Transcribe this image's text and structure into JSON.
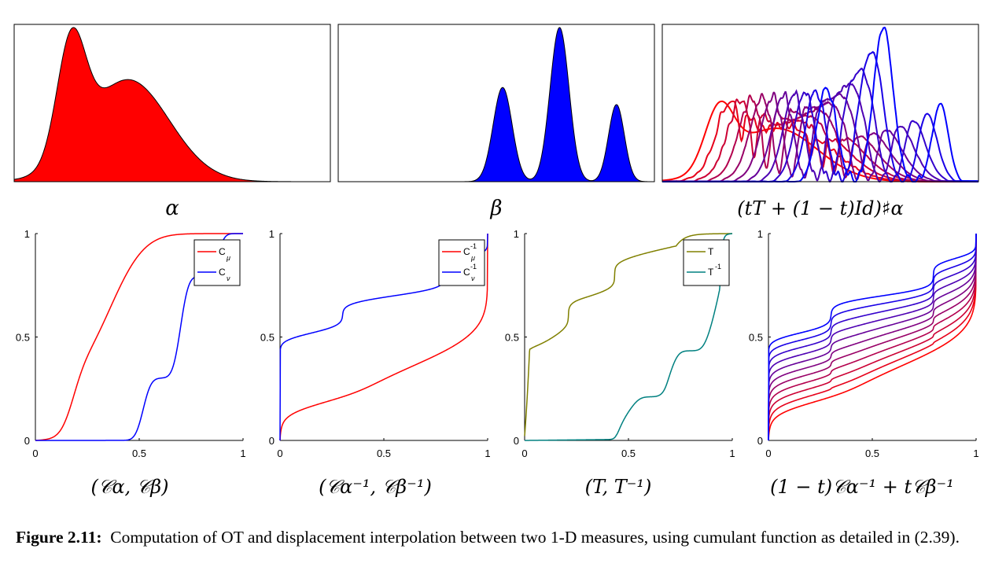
{
  "caption": {
    "label": "Figure 2.11:",
    "text": "Computation of OT and displacement interpolation between two 1-D measures, using cumulant function as detailed in (2.39)."
  },
  "colors": {
    "red": "#ff0000",
    "blue": "#0000ff",
    "olive": "#808000",
    "teal": "#008080"
  },
  "top_panels": [
    {
      "label": "α"
    },
    {
      "label": "β"
    },
    {
      "label": "(tT + (1 − t)Id)♯α"
    }
  ],
  "bottom_panels": [
    {
      "label": "(𝒞α, 𝒞β)",
      "legend": [
        "C_μ",
        "C_ν"
      ]
    },
    {
      "label": "(𝒞α⁻¹, 𝒞β⁻¹)",
      "legend": [
        "C_μ^-1",
        "C_ν^-1"
      ]
    },
    {
      "label": "(T, T⁻¹)",
      "legend": [
        "T",
        "T^-1"
      ]
    },
    {
      "label": "(1 − t)𝒞α⁻¹ + t𝒞β⁻¹",
      "legend": []
    }
  ],
  "axes": {
    "x_ticks": [
      "0",
      "0.5",
      "1"
    ],
    "y_ticks": [
      "0",
      "0.5",
      "1"
    ]
  },
  "chart_data": [
    {
      "type": "area",
      "title": "",
      "description_label": "α",
      "series": [
        {
          "name": "",
          "components": [
            {
              "mean": 0.18,
              "sd": 0.045,
              "weight": 1.0
            },
            {
              "mean": 0.36,
              "sd": 0.13,
              "weight": 0.9
            }
          ]
        }
      ],
      "color": "#ff0000",
      "xlim": [
        0,
        1
      ]
    },
    {
      "type": "area",
      "title": "",
      "description_label": "β",
      "series": [
        {
          "name": "",
          "components": [
            {
              "mean": 0.52,
              "sd": 0.03,
              "weight": 0.55
            },
            {
              "mean": 0.7,
              "sd": 0.03,
              "weight": 0.9
            },
            {
              "mean": 0.88,
              "sd": 0.025,
              "weight": 0.45
            }
          ]
        }
      ],
      "color": "#0000ff",
      "xlim": [
        0,
        1
      ]
    },
    {
      "type": "line",
      "title": "",
      "description_label": "(tT + (1 − t)Id)♯α",
      "t_values": [
        0,
        0.1,
        0.2,
        0.3,
        0.4,
        0.5,
        0.6,
        0.7,
        0.8,
        0.9,
        1.0
      ],
      "xlim": [
        0,
        1
      ]
    },
    {
      "type": "line",
      "title": "",
      "series": [
        {
          "name": "C_μ"
        },
        {
          "name": "C_ν"
        }
      ],
      "xlim": [
        0,
        1
      ],
      "ylim": [
        0,
        1
      ]
    },
    {
      "type": "line",
      "title": "",
      "series": [
        {
          "name": "C_μ^-1"
        },
        {
          "name": "C_ν^-1"
        }
      ],
      "xlim": [
        0,
        1
      ],
      "ylim": [
        0,
        1
      ]
    },
    {
      "type": "line",
      "title": "",
      "series": [
        {
          "name": "T"
        },
        {
          "name": "T^-1"
        }
      ],
      "xlim": [
        0,
        1
      ],
      "ylim": [
        0,
        1
      ]
    },
    {
      "type": "line",
      "title": "",
      "t_values": [
        0,
        0.1,
        0.2,
        0.3,
        0.4,
        0.5,
        0.6,
        0.7,
        0.8,
        0.9,
        1.0
      ],
      "xlim": [
        0,
        1
      ],
      "ylim": [
        0,
        1
      ]
    }
  ]
}
